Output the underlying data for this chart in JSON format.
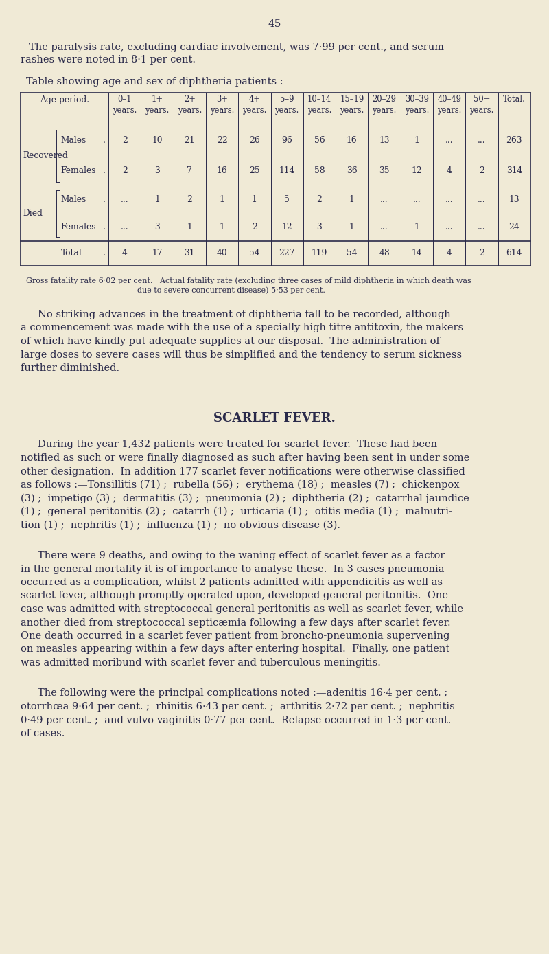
{
  "bg_color": "#f0ead6",
  "text_color": "#2a2a4a",
  "page_number": "45",
  "intro_lines": [
    "The paralysis rate, excluding cardiac involvement, was 7·99 per cent., and serum",
    "rashes were noted in 8·1 per cent."
  ],
  "table_title": "Table showing age and sex of diphtheria patients :—",
  "header_labels": [
    "0–1\nyears.",
    "1+\nyears.",
    "2+\nyears.",
    "3+\nyears.",
    "4+\nyears.",
    "5–9\nyears.",
    "10–14\nyears.",
    "15–19\nyears.",
    "20–29\nyears.",
    "30–39\nyears.",
    "40–49\nyears.",
    "50+\nyears.",
    "Total."
  ],
  "row_data": [
    [
      "Males",
      ".",
      "2",
      "10",
      "21",
      "22",
      "26",
      "96",
      "56",
      "16",
      "13",
      "1",
      "...",
      "...",
      "263"
    ],
    [
      "Females",
      ".",
      "2",
      "3",
      "7",
      "16",
      "25",
      "114",
      "58",
      "36",
      "35",
      "12",
      "4",
      "2",
      "314"
    ],
    [
      "Males",
      ".",
      "...",
      "1",
      "2",
      "1",
      "1",
      "5",
      "2",
      "1",
      "...",
      "...",
      "...",
      "...",
      "13"
    ],
    [
      "Females",
      ".",
      "...",
      "3",
      "1",
      "1",
      "2",
      "12",
      "3",
      "1",
      "...",
      "1",
      "...",
      "...",
      "24"
    ]
  ],
  "total_row": [
    "Total",
    ".",
    "4",
    "17",
    "31",
    "40",
    "54",
    "227",
    "119",
    "54",
    "48",
    "14",
    "4",
    "2",
    "614"
  ],
  "footnote_line1": "Gross fatality rate 6·02 per cent.   Actual fatality rate (excluding three cases of mild diphtheria in which death was",
  "footnote_line2": "due to severe concurrent disease) 5·53 per cent.",
  "para1_lines": [
    "No striking advances in the treatment of diphtheria fall to be recorded, although",
    "a commencement was made with the use of a specially high titre antitoxin, the makers",
    "of which have kindly put adequate supplies at our disposal.  The administration of",
    "large doses to severe cases will thus be simplified and the tendency to serum sickness",
    "further diminished."
  ],
  "section_title": "SCARLET FEVER.",
  "para2_lines": [
    "During the year 1,432 patients were treated for scarlet fever.  These had been",
    "notified as such or were finally diagnosed as such after having been sent in under some",
    "other designation.  In addition 177 scarlet fever notifications were otherwise classified",
    "as follows :—Tonsillitis (71) ;  rubella (56) ;  erythema (18) ;  measles (7) ;  chickenpox",
    "(3) ;  impetigo (3) ;  dermatitis (3) ;  pneumonia (2) ;  diphtheria (2) ;  catarrhal jaundice",
    "(1) ;  general peritonitis (2) ;  catarrh (1) ;  urticaria (1) ;  otitis media (1) ;  malnutri-",
    "tion (1) ;  nephritis (1) ;  influenza (1) ;  no obvious disease (3)."
  ],
  "para3_lines": [
    "There were 9 deaths, and owing to the waning effect of scarlet fever as a factor",
    "in the general mortality it is of importance to analyse these.  In 3 cases pneumonia",
    "occurred as a complication, whilst 2 patients admitted with appendicitis as well as",
    "scarlet fever, although promptly operated upon, developed general peritonitis.  One",
    "case was admitted with streptococcal general peritonitis as well as scarlet fever, while",
    "another died from streptococcal septicæmia following a few days after scarlet fever.",
    "One death occurred in a scarlet fever patient from broncho-pneumonia supervening",
    "on measles appearing within a few days after entering hospital.  Finally, one patient",
    "was admitted moribund with scarlet fever and tuberculous meningitis."
  ],
  "para4_lines": [
    "The following were the principal complications noted :—adenitis 16·4 per cent. ;",
    "otorrhœa 9·64 per cent. ;  rhinitis 6·43 per cent. ;  arthritis 2·72 per cent. ;  nephritis",
    "0·49 per cent. ;  and vulvo-vaginitis 0·77 per cent.  Relapse occurred in 1·3 per cent.",
    "of cases."
  ]
}
